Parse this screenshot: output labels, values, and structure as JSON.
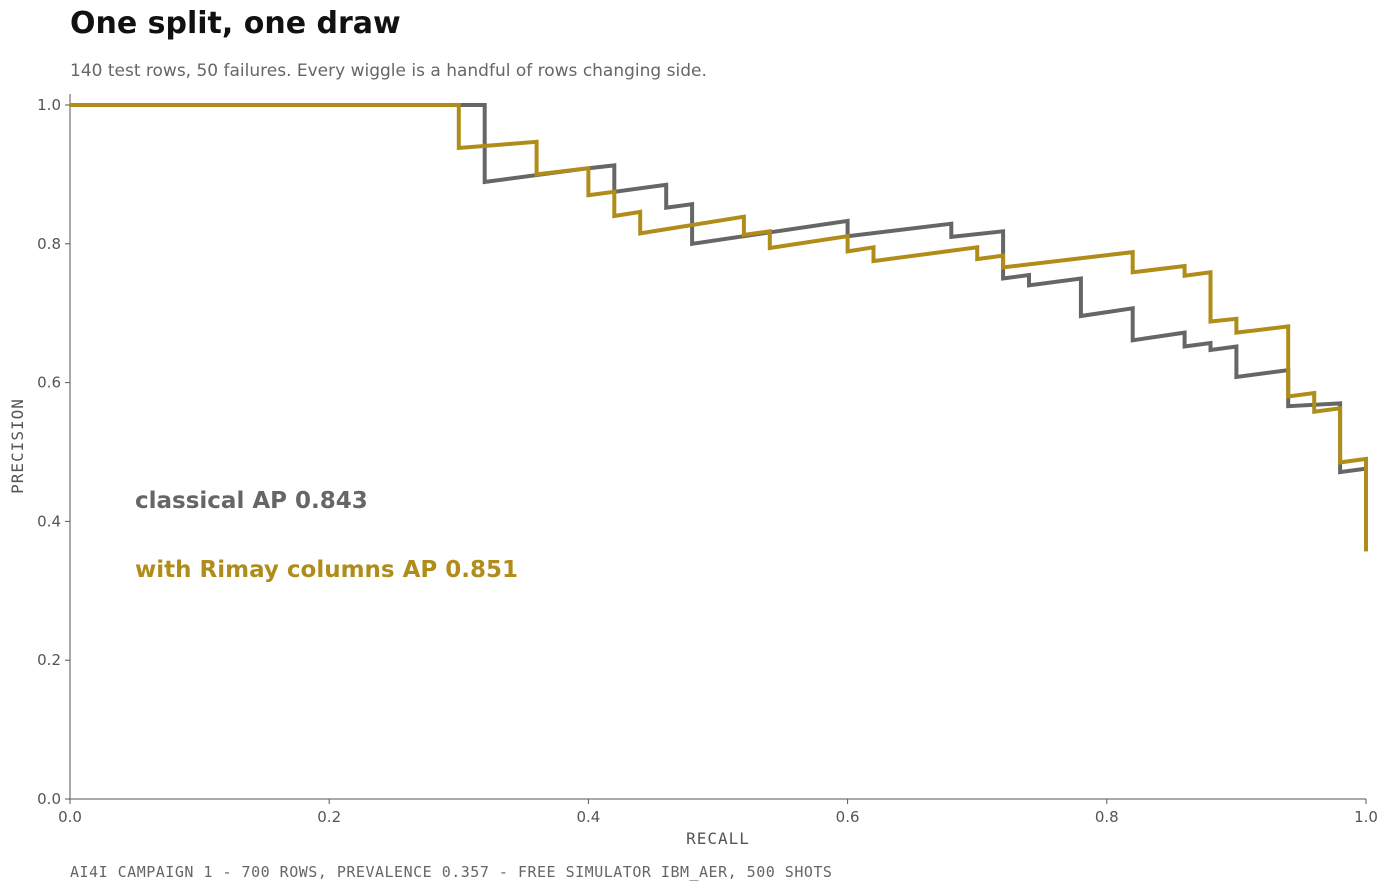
{
  "title": "One split, one draw",
  "subtitle": "140 test rows, 50 failures. Every wiggle is a handful of rows changing side.",
  "footer": "AI4I CAMPAIGN 1 - 700 ROWS, PREVALENCE 0.357 - FREE SIMULATOR IBM_AER, 500 SHOTS",
  "chart_data": {
    "type": "line",
    "xlabel": "RECALL",
    "ylabel": "PRECISION",
    "xlim": [
      0,
      1
    ],
    "ylim": [
      0,
      1
    ],
    "xticks": [
      "0.0",
      "0.2",
      "0.4",
      "0.6",
      "0.8",
      "1.0"
    ],
    "yticks": [
      "0.0",
      "0.2",
      "0.4",
      "0.6",
      "0.8",
      "1.0"
    ],
    "grid": false,
    "legend": "inline annotations, left",
    "series": [
      {
        "name": "classical",
        "annotation": "classical  AP 0.843",
        "color": "#666666",
        "points": [
          [
            0,
            1
          ],
          [
            0.32,
            1
          ],
          [
            0.32,
            0.889
          ],
          [
            0.4,
            0.909
          ],
          [
            0.42,
            0.913
          ],
          [
            0.42,
            0.875
          ],
          [
            0.46,
            0.885
          ],
          [
            0.46,
            0.852
          ],
          [
            0.48,
            0.857
          ],
          [
            0.48,
            0.8
          ],
          [
            0.6,
            0.833
          ],
          [
            0.6,
            0.811
          ],
          [
            0.68,
            0.829
          ],
          [
            0.68,
            0.81
          ],
          [
            0.72,
            0.818
          ],
          [
            0.72,
            0.75
          ],
          [
            0.74,
            0.755
          ],
          [
            0.74,
            0.74
          ],
          [
            0.78,
            0.75
          ],
          [
            0.78,
            0.696
          ],
          [
            0.82,
            0.707
          ],
          [
            0.82,
            0.661
          ],
          [
            0.86,
            0.672
          ],
          [
            0.86,
            0.652
          ],
          [
            0.88,
            0.657
          ],
          [
            0.88,
            0.647
          ],
          [
            0.9,
            0.652
          ],
          [
            0.9,
            0.608
          ],
          [
            0.94,
            0.618
          ],
          [
            0.94,
            0.566
          ],
          [
            0.98,
            0.57
          ],
          [
            0.98,
            0.471
          ],
          [
            1.0,
            0.476
          ],
          [
            1.0,
            0.357
          ]
        ]
      },
      {
        "name": "with Rimay columns",
        "annotation": "with Rimay columns  AP 0.851",
        "color": "#b08d1a",
        "points": [
          [
            0,
            1
          ],
          [
            0.3,
            1
          ],
          [
            0.3,
            0.938
          ],
          [
            0.36,
            0.947
          ],
          [
            0.36,
            0.9
          ],
          [
            0.4,
            0.909
          ],
          [
            0.4,
            0.87
          ],
          [
            0.42,
            0.875
          ],
          [
            0.42,
            0.84
          ],
          [
            0.44,
            0.846
          ],
          [
            0.44,
            0.815
          ],
          [
            0.52,
            0.839
          ],
          [
            0.52,
            0.813
          ],
          [
            0.54,
            0.818
          ],
          [
            0.54,
            0.794
          ],
          [
            0.6,
            0.811
          ],
          [
            0.6,
            0.789
          ],
          [
            0.62,
            0.795
          ],
          [
            0.62,
            0.775
          ],
          [
            0.7,
            0.795
          ],
          [
            0.7,
            0.778
          ],
          [
            0.72,
            0.783
          ],
          [
            0.72,
            0.766
          ],
          [
            0.82,
            0.788
          ],
          [
            0.82,
            0.759
          ],
          [
            0.86,
            0.768
          ],
          [
            0.86,
            0.754
          ],
          [
            0.88,
            0.759
          ],
          [
            0.88,
            0.688
          ],
          [
            0.9,
            0.692
          ],
          [
            0.9,
            0.672
          ],
          [
            0.94,
            0.681
          ],
          [
            0.94,
            0.58
          ],
          [
            0.96,
            0.585
          ],
          [
            0.96,
            0.558
          ],
          [
            0.98,
            0.563
          ],
          [
            0.98,
            0.485
          ],
          [
            1.0,
            0.49
          ],
          [
            1.0,
            0.357
          ]
        ]
      }
    ]
  }
}
